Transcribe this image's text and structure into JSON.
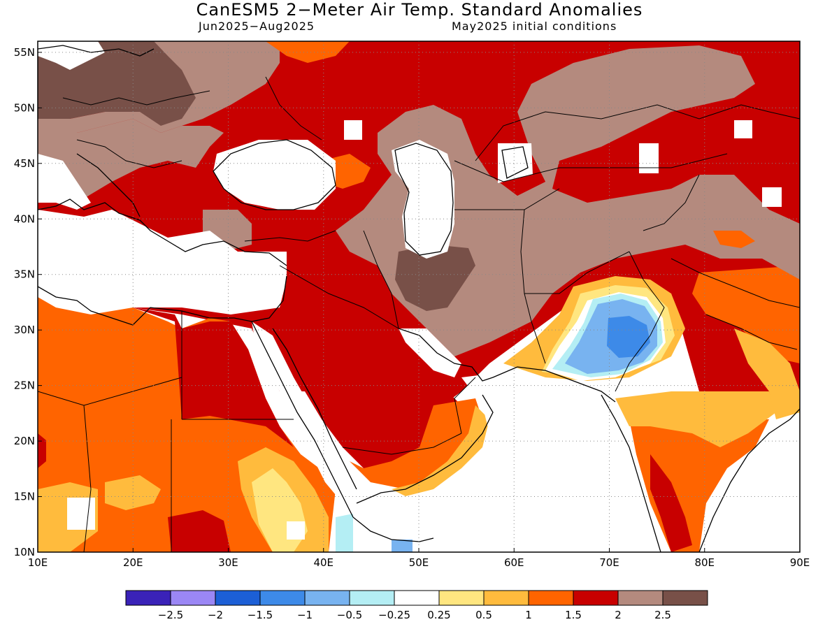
{
  "title": "CanESM5 2−Meter Air Temp. Standard Anomalies",
  "subtitle_left": "Jun2025−Aug2025",
  "subtitle_right": "May2025 initial conditions",
  "map": {
    "region": "Middle East and South Asia",
    "lon_range": [
      10,
      90
    ],
    "lat_range": [
      10,
      56
    ],
    "lon_ticks": [
      "10E",
      "20E",
      "30E",
      "40E",
      "50E",
      "60E",
      "70E",
      "80E",
      "90E"
    ],
    "lat_ticks": [
      "10N",
      "15N",
      "20N",
      "25N",
      "30N",
      "35N",
      "40N",
      "45N",
      "50N",
      "55N"
    ],
    "grid": "dotted"
  },
  "colorbar": {
    "colors": [
      "#3a22b8",
      "#9b87f5",
      "#1c5fd6",
      "#3d8ae8",
      "#78b3f0",
      "#b4eef4",
      "#ffffff",
      "#ffe680",
      "#ffbb3d",
      "#ff6400",
      "#c80000",
      "#b48a7e",
      "#785048"
    ],
    "labels": [
      "−2.5",
      "−2",
      "−1.5",
      "−1",
      "−0.5",
      "−0.25",
      "0.25",
      "0.5",
      "1",
      "1.5",
      "2",
      "2.5"
    ]
  }
}
